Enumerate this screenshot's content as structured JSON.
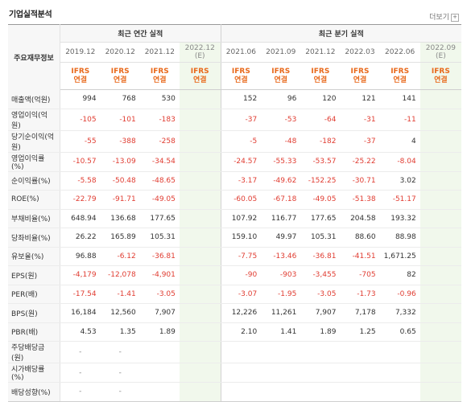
{
  "title": "기업실적분석",
  "more_label": "더보기",
  "header": {
    "label_col": "주요재무정보",
    "annual_group": "최근 연간 실적",
    "quarter_group": "최근 분기 실적",
    "annual_periods": [
      "2019.12",
      "2020.12",
      "2021.12",
      "2022.12"
    ],
    "annual_est": "(E)",
    "quarter_periods": [
      "2021.06",
      "2021.09",
      "2021.12",
      "2022.03",
      "2022.06",
      "2022.09"
    ],
    "quarter_est": "(E)",
    "ifrs": "IFRS",
    "consol": "연결"
  },
  "rows": [
    {
      "label": "매출액(억원)",
      "values": [
        "994",
        "768",
        "530",
        "",
        "152",
        "96",
        "120",
        "121",
        "141",
        ""
      ]
    },
    {
      "label": "영업이익(억원)",
      "values": [
        "-105",
        "-101",
        "-183",
        "",
        "-37",
        "-53",
        "-64",
        "-31",
        "-11",
        ""
      ]
    },
    {
      "label": "당기순이익(억원)",
      "values": [
        "-55",
        "-388",
        "-258",
        "",
        "-5",
        "-48",
        "-182",
        "-37",
        "4",
        ""
      ]
    },
    {
      "label": "영업이익률(%)",
      "values": [
        "-10.57",
        "-13.09",
        "-34.54",
        "",
        "-24.57",
        "-55.33",
        "-53.57",
        "-25.22",
        "-8.04",
        ""
      ]
    },
    {
      "label": "순이익률(%)",
      "values": [
        "-5.58",
        "-50.48",
        "-48.65",
        "",
        "-3.17",
        "-49.62",
        "-152.25",
        "-30.71",
        "3.02",
        ""
      ]
    },
    {
      "label": "ROE(%)",
      "values": [
        "-22.79",
        "-91.71",
        "-49.05",
        "",
        "-60.05",
        "-67.18",
        "-49.05",
        "-51.38",
        "-51.17",
        ""
      ]
    },
    {
      "label": "부채비율(%)",
      "values": [
        "648.94",
        "136.68",
        "177.65",
        "",
        "107.92",
        "116.77",
        "177.65",
        "204.58",
        "193.32",
        ""
      ]
    },
    {
      "label": "당좌비율(%)",
      "values": [
        "26.22",
        "165.89",
        "105.31",
        "",
        "159.10",
        "49.97",
        "105.31",
        "88.60",
        "88.98",
        ""
      ]
    },
    {
      "label": "유보율(%)",
      "values": [
        "96.88",
        "-6.12",
        "-36.81",
        "",
        "-7.75",
        "-13.46",
        "-36.81",
        "-41.51",
        "1,671.25",
        ""
      ]
    },
    {
      "label": "EPS(원)",
      "values": [
        "-4,179",
        "-12,078",
        "-4,901",
        "",
        "-90",
        "-903",
        "-3,455",
        "-705",
        "82",
        ""
      ]
    },
    {
      "label": "PER(배)",
      "values": [
        "-17.54",
        "-1.41",
        "-3.05",
        "",
        "-3.07",
        "-1.95",
        "-3.05",
        "-1.73",
        "-0.96",
        ""
      ]
    },
    {
      "label": "BPS(원)",
      "values": [
        "16,184",
        "12,560",
        "7,907",
        "",
        "12,226",
        "11,261",
        "7,907",
        "7,178",
        "7,332",
        ""
      ]
    },
    {
      "label": "PBR(배)",
      "values": [
        "4.53",
        "1.35",
        "1.89",
        "",
        "2.10",
        "1.41",
        "1.89",
        "1.25",
        "0.65",
        ""
      ]
    },
    {
      "label": "주당배당금(원)",
      "values": [
        "-",
        "-",
        "",
        "",
        "",
        "",
        "",
        "",
        "",
        ""
      ]
    },
    {
      "label": "시가배당률(%)",
      "values": [
        "-",
        "-",
        "",
        "",
        "",
        "",
        "",
        "",
        "",
        ""
      ]
    },
    {
      "label": "배당성향(%)",
      "values": [
        "-",
        "-",
        "",
        "",
        "",
        "",
        "",
        "",
        "",
        ""
      ]
    }
  ],
  "colors": {
    "negative": "#e03c31",
    "ifrs": "#e8691b",
    "estimate_bg": "#f1f8ec"
  }
}
